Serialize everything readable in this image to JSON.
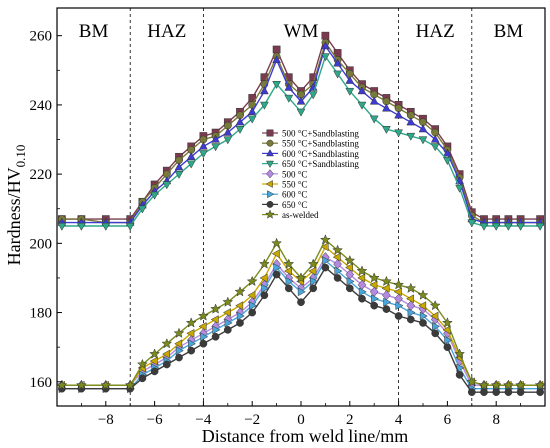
{
  "chart_data": {
    "type": "line",
    "xlabel": "Distance from weld line/mm",
    "ylabel_main": "Hardness/HV",
    "ylabel_sub": "0.10",
    "xlim": [
      -10,
      10
    ],
    "ylim": [
      153,
      268
    ],
    "xticks": [
      -8,
      -6,
      -4,
      -2,
      0,
      2,
      4,
      6,
      8
    ],
    "yticks": [
      160,
      180,
      200,
      220,
      240,
      260
    ],
    "regions": [
      {
        "label": "BM",
        "x": -8.5
      },
      {
        "label": "HAZ",
        "x": -5.5
      },
      {
        "label": "WM",
        "x": 0
      },
      {
        "label": "HAZ",
        "x": 5.5
      },
      {
        "label": "BM",
        "x": 8.5
      }
    ],
    "boundaries": [
      -7,
      -4,
      4,
      7
    ],
    "x": [
      -9.8,
      -9,
      -8,
      -7,
      -6.5,
      -6,
      -5.5,
      -5,
      -4.5,
      -4,
      -3.5,
      -3,
      -2.5,
      -2,
      -1.5,
      -1,
      -0.5,
      0,
      0.5,
      1,
      1.5,
      2,
      2.5,
      3,
      3.5,
      4,
      4.5,
      5,
      5.5,
      6,
      6.5,
      7,
      7.5,
      8,
      8.5,
      9,
      9.8
    ],
    "series": [
      {
        "name": "500 °C+Sandblasting",
        "color": "#7a3b4e",
        "marker": "square",
        "values": [
          207,
          207,
          207,
          207,
          212,
          217,
          221,
          225,
          228,
          231,
          232,
          235,
          238,
          242,
          248,
          256,
          248,
          244,
          248,
          260,
          255,
          250,
          246,
          244,
          242,
          240,
          238,
          236,
          233,
          228,
          220,
          209,
          207,
          207,
          207,
          207,
          207
        ]
      },
      {
        "name": "550 °C+Sandblasting",
        "color": "#787a3a",
        "marker": "circle",
        "values": [
          207,
          207,
          206,
          206,
          212,
          216,
          220,
          224,
          227,
          230,
          231,
          234,
          237,
          240,
          246,
          254,
          246,
          243,
          246,
          258,
          253,
          249,
          245,
          243,
          241,
          239,
          237,
          235,
          232,
          227,
          219,
          208,
          206,
          206,
          206,
          206,
          206
        ]
      },
      {
        "name": "600 °C+Sandblasting",
        "color": "#3d3bd1",
        "marker": "triangle-up",
        "values": [
          206,
          206,
          206,
          206,
          211,
          215,
          218,
          222,
          225,
          228,
          230,
          232,
          235,
          238,
          244,
          253,
          245,
          241,
          245,
          257,
          252,
          247,
          244,
          241,
          239,
          237,
          235,
          233,
          230,
          226,
          218,
          207,
          206,
          206,
          206,
          206,
          206
        ]
      },
      {
        "name": "650 °C+Sandblasting",
        "color": "#2fa88a",
        "marker": "triangle-down",
        "values": [
          205,
          205,
          205,
          205,
          210,
          214,
          217,
          220,
          223,
          226,
          228,
          230,
          233,
          236,
          240,
          246,
          242,
          238,
          243,
          254,
          249,
          244,
          240,
          236,
          233,
          232,
          231,
          230,
          228,
          224,
          216,
          206,
          205,
          205,
          205,
          205,
          205
        ]
      },
      {
        "name": "500 °C",
        "color": "#b48ae0",
        "marker": "diamond",
        "values": [
          159,
          159,
          159,
          159,
          163,
          165,
          167,
          170,
          172,
          174,
          176,
          178,
          180,
          183,
          188,
          194,
          190,
          187,
          190,
          196,
          194,
          191,
          188,
          186,
          185,
          184,
          182,
          181,
          178,
          174,
          166,
          159,
          159,
          159,
          159,
          159,
          159
        ]
      },
      {
        "name": "550 °C",
        "color": "#c8a800",
        "marker": "triangle-left",
        "values": [
          159,
          159,
          159,
          159,
          164,
          166,
          168,
          171,
          174,
          176,
          178,
          180,
          182,
          185,
          190,
          197,
          192,
          189,
          192,
          199,
          196,
          193,
          190,
          188,
          187,
          186,
          184,
          182,
          179,
          175,
          167,
          160,
          159,
          159,
          159,
          159,
          159
        ]
      },
      {
        "name": "600 °C",
        "color": "#4aa6d8",
        "marker": "triangle-right",
        "values": [
          158,
          158,
          158,
          158,
          162,
          164,
          166,
          169,
          171,
          173,
          175,
          177,
          179,
          182,
          187,
          193,
          189,
          186,
          189,
          195,
          192,
          189,
          186,
          184,
          183,
          182,
          180,
          179,
          176,
          172,
          164,
          158,
          158,
          158,
          158,
          158,
          158
        ]
      },
      {
        "name": "650 °C",
        "color": "#3b3b3b",
        "marker": "circle",
        "values": [
          158,
          158,
          158,
          158,
          161,
          163,
          165,
          167,
          169,
          171,
          173,
          175,
          177,
          180,
          185,
          191,
          187,
          183,
          187,
          193,
          190,
          187,
          184,
          182,
          181,
          179,
          178,
          177,
          174,
          170,
          162,
          157,
          157,
          157,
          157,
          157,
          157
        ]
      },
      {
        "name": "as-welded",
        "color": "#7a8a1e",
        "marker": "star",
        "values": [
          159,
          159,
          159,
          159,
          165,
          168,
          171,
          174,
          177,
          179,
          181,
          183,
          186,
          189,
          194,
          200,
          194,
          190,
          194,
          201,
          198,
          195,
          192,
          190,
          189,
          188,
          187,
          185,
          182,
          177,
          168,
          160,
          159,
          159,
          159,
          159,
          159
        ]
      }
    ]
  }
}
